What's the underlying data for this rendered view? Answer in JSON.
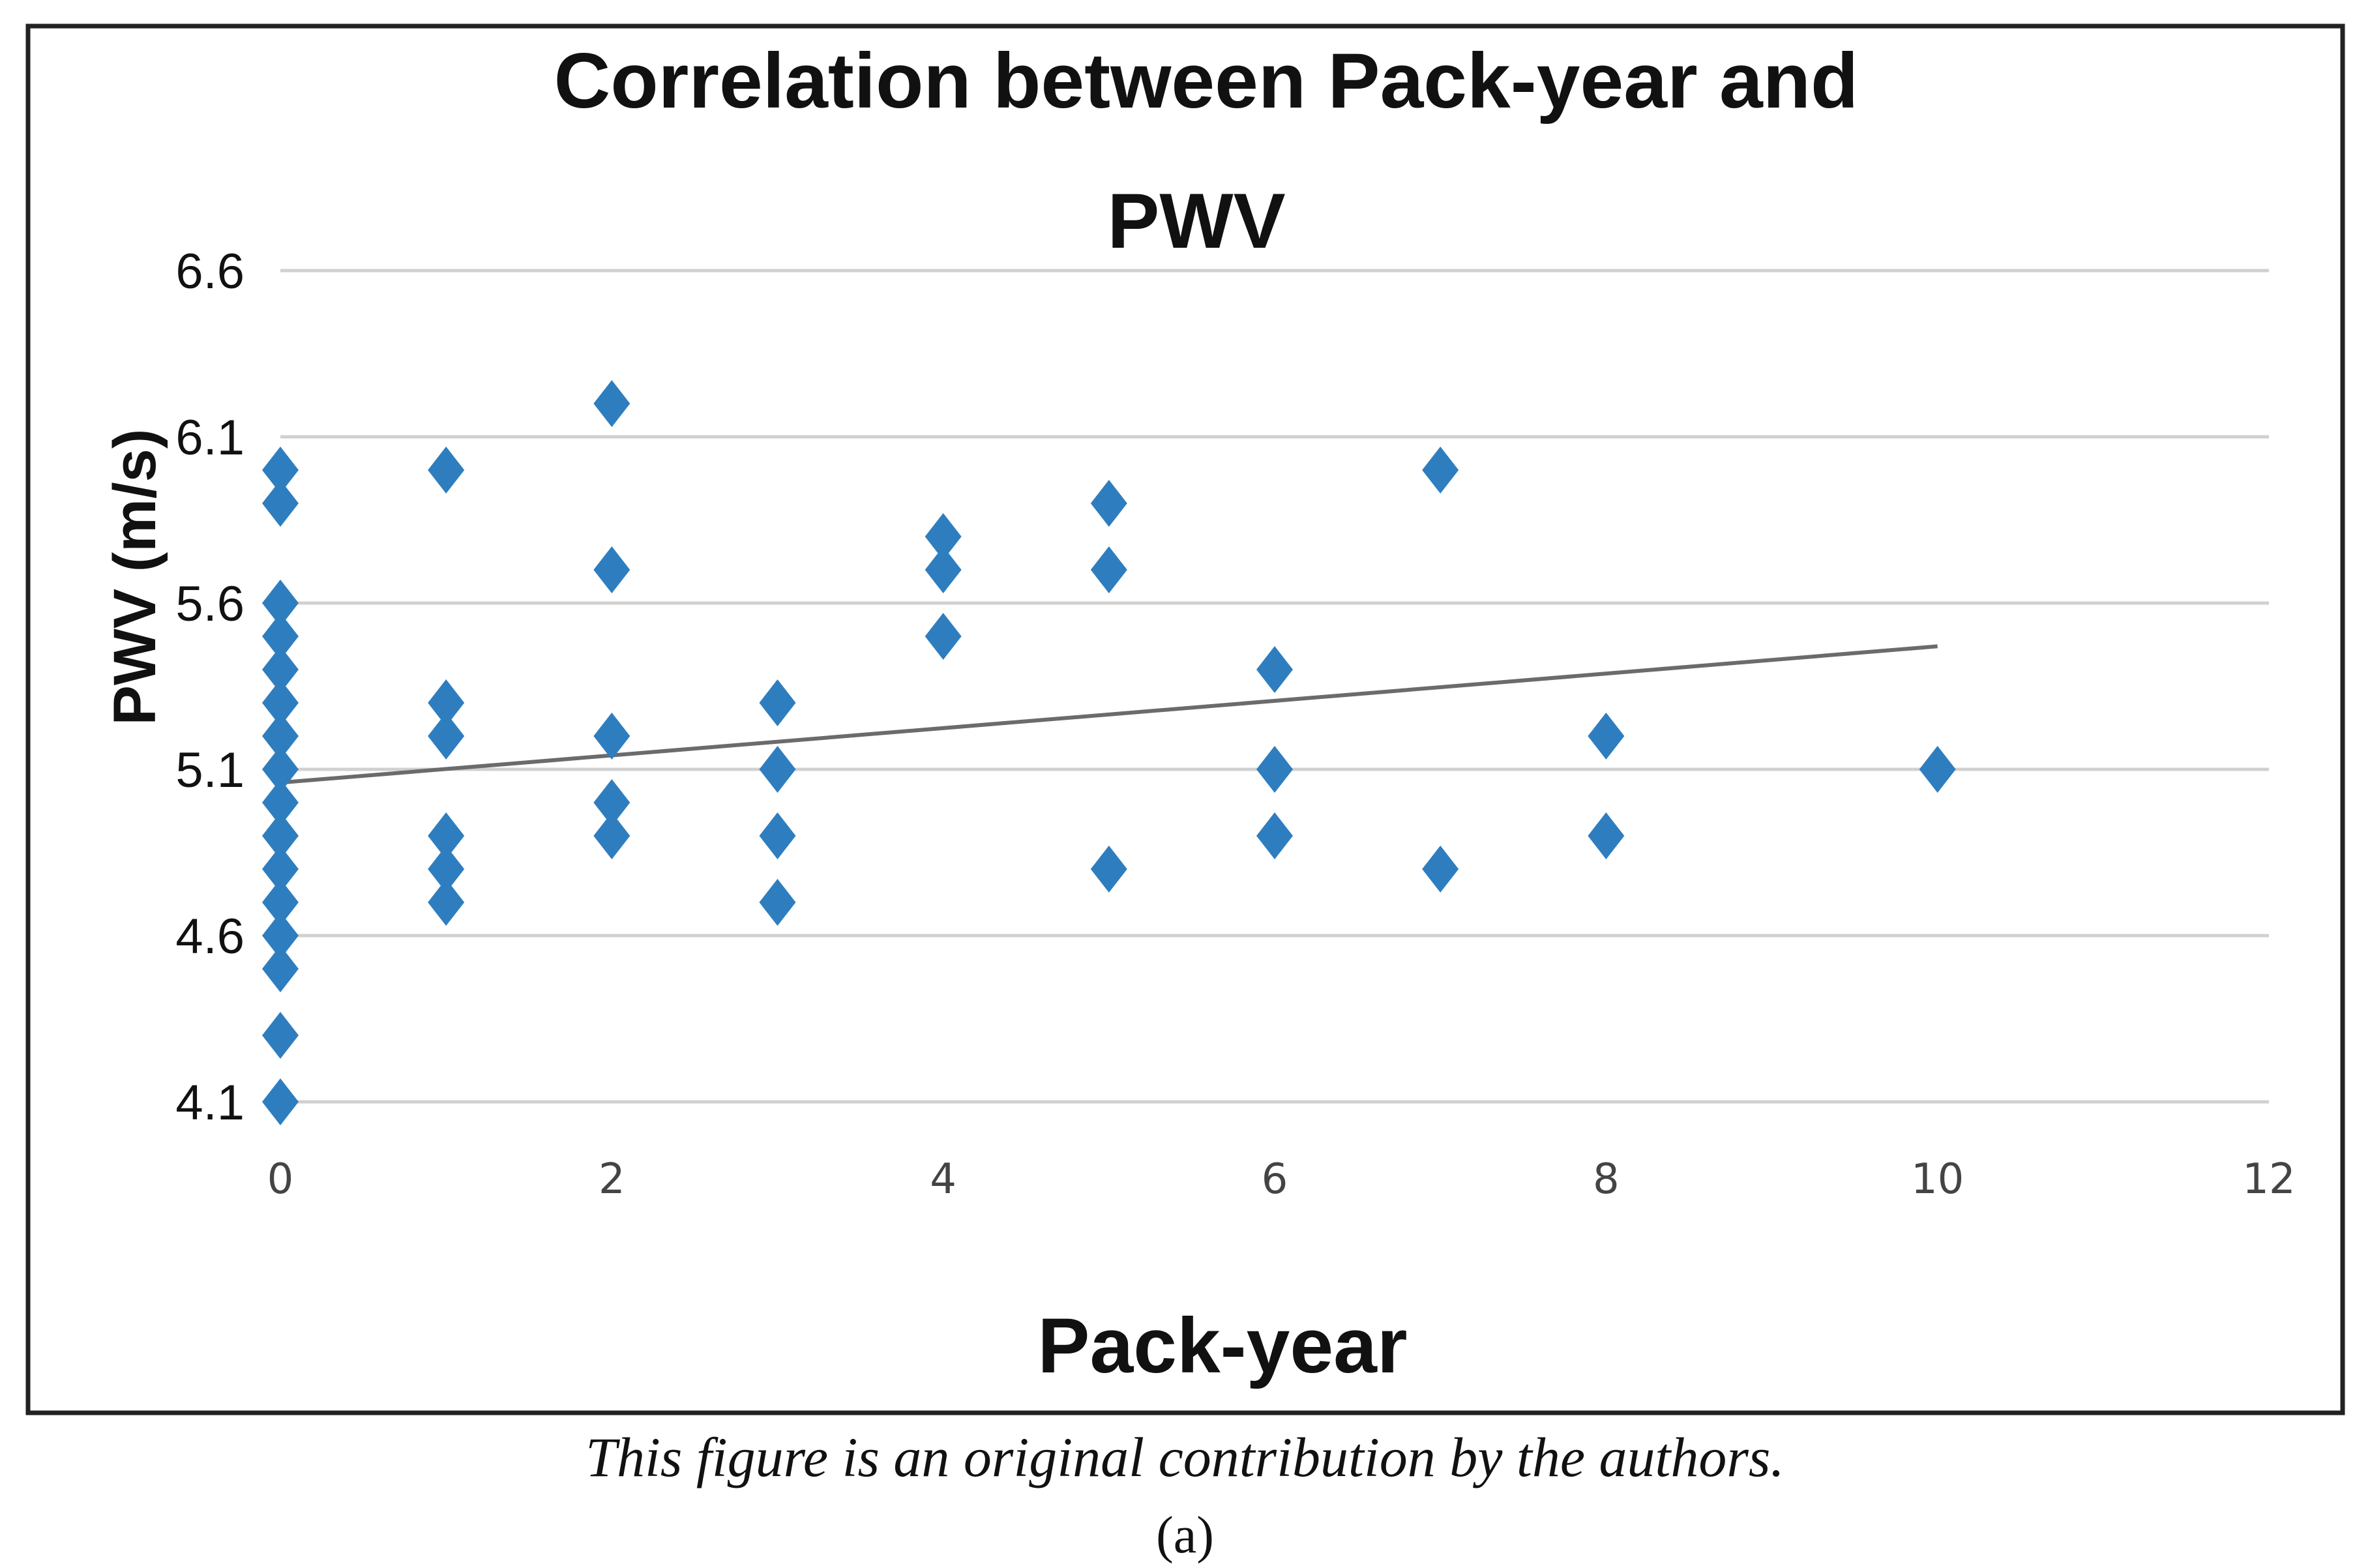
{
  "chart_data": {
    "type": "scatter",
    "title_line1": "Correlation between Pack-year and",
    "title_line2": "PWV",
    "xlabel": "Pack-year",
    "ylabel": "PWV (m/s)",
    "xlim": [
      0,
      12
    ],
    "ylim": [
      4.1,
      6.6
    ],
    "x_ticks": [
      "0",
      "2",
      "4",
      "6",
      "8",
      "10",
      "12"
    ],
    "y_ticks": [
      "4.1",
      "4.6",
      "5.1",
      "5.6",
      "6.1",
      "6.6"
    ],
    "grid": "horizontal",
    "marker": "diamond",
    "marker_color": "#2E7EBF",
    "trendline_color": "#6b6b6b",
    "trendline": {
      "x": [
        0,
        10
      ],
      "y": [
        5.06,
        5.47
      ]
    },
    "points": [
      {
        "x": 0,
        "y": 6.0
      },
      {
        "x": 0,
        "y": 5.9
      },
      {
        "x": 0,
        "y": 5.6
      },
      {
        "x": 0,
        "y": 5.5
      },
      {
        "x": 0,
        "y": 5.4
      },
      {
        "x": 0,
        "y": 5.3
      },
      {
        "x": 0,
        "y": 5.2
      },
      {
        "x": 0,
        "y": 5.1
      },
      {
        "x": 0,
        "y": 5.0
      },
      {
        "x": 0,
        "y": 4.9
      },
      {
        "x": 0,
        "y": 4.8
      },
      {
        "x": 0,
        "y": 4.7
      },
      {
        "x": 0,
        "y": 4.6
      },
      {
        "x": 0,
        "y": 4.5
      },
      {
        "x": 0,
        "y": 4.3
      },
      {
        "x": 0,
        "y": 4.1
      },
      {
        "x": 1,
        "y": 6.0
      },
      {
        "x": 1,
        "y": 5.3
      },
      {
        "x": 1,
        "y": 5.2
      },
      {
        "x": 1,
        "y": 4.9
      },
      {
        "x": 1,
        "y": 4.8
      },
      {
        "x": 1,
        "y": 4.7
      },
      {
        "x": 2,
        "y": 6.2
      },
      {
        "x": 2,
        "y": 5.7
      },
      {
        "x": 2,
        "y": 5.2
      },
      {
        "x": 2,
        "y": 5.0
      },
      {
        "x": 2,
        "y": 4.9
      },
      {
        "x": 3,
        "y": 5.3
      },
      {
        "x": 3,
        "y": 5.1
      },
      {
        "x": 3,
        "y": 4.9
      },
      {
        "x": 3,
        "y": 4.7
      },
      {
        "x": 4,
        "y": 5.8
      },
      {
        "x": 4,
        "y": 5.7
      },
      {
        "x": 4,
        "y": 5.5
      },
      {
        "x": 5,
        "y": 5.9
      },
      {
        "x": 5,
        "y": 5.7
      },
      {
        "x": 5,
        "y": 4.8
      },
      {
        "x": 6,
        "y": 5.4
      },
      {
        "x": 6,
        "y": 5.1
      },
      {
        "x": 6,
        "y": 4.9
      },
      {
        "x": 7,
        "y": 6.0
      },
      {
        "x": 7,
        "y": 4.8
      },
      {
        "x": 8,
        "y": 5.2
      },
      {
        "x": 8,
        "y": 4.9
      },
      {
        "x": 10,
        "y": 5.1
      }
    ]
  },
  "caption": "This figure is an original contribution by the authors.",
  "subcaption": "(a)"
}
